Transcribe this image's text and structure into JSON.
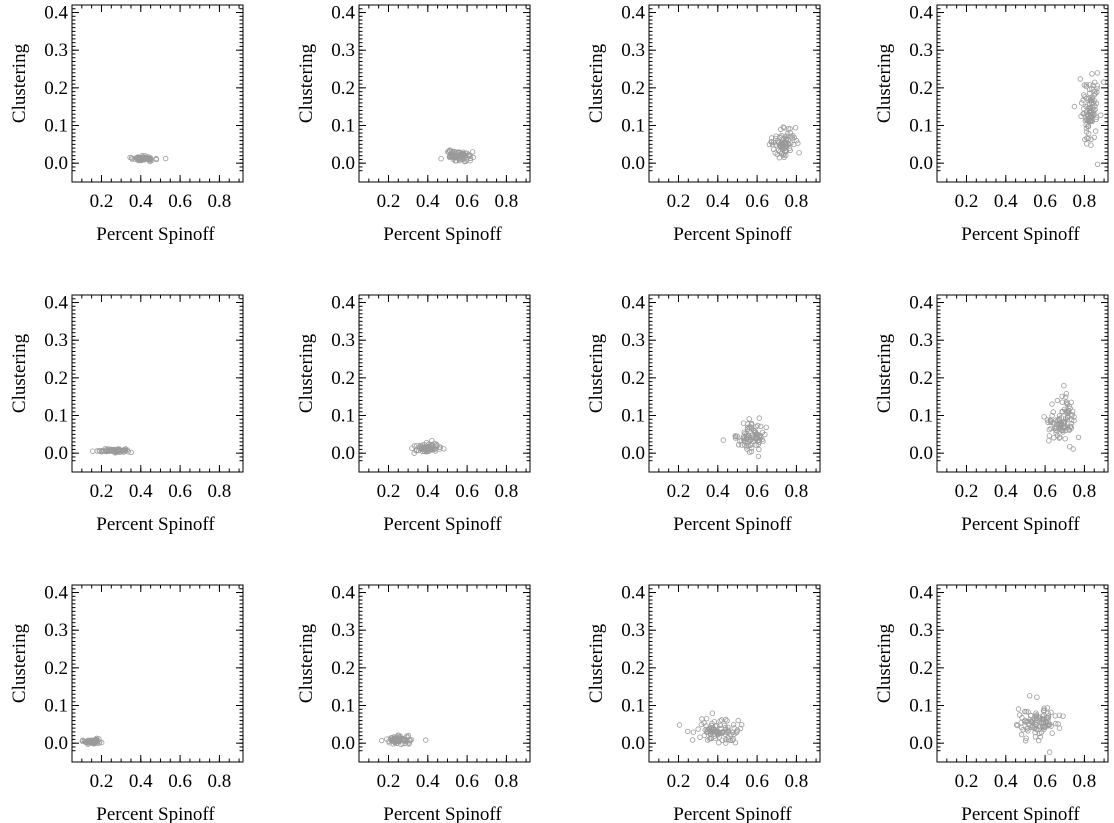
{
  "chart_data": [
    {
      "type": "scatter",
      "xlabel": "Percent Spinoff",
      "ylabel": "Clustering",
      "xticks": [
        "0.2",
        "0.4",
        "0.6",
        "0.8"
      ],
      "yticks": [
        "0.0",
        "0.1",
        "0.2",
        "0.3",
        "0.4"
      ],
      "xlim": [
        0.05,
        0.92
      ],
      "ylim": [
        -0.05,
        0.42
      ],
      "cluster": {
        "x_center": 0.42,
        "x_spread": 0.03,
        "y_center": 0.01,
        "y_spread": 0.004,
        "n": 60
      }
    },
    {
      "type": "scatter",
      "xlabel": "Percent Spinoff",
      "ylabel": "Clustering",
      "xticks": [
        "0.2",
        "0.4",
        "0.6",
        "0.8"
      ],
      "yticks": [
        "0.0",
        "0.1",
        "0.2",
        "0.3",
        "0.4"
      ],
      "xlim": [
        0.05,
        0.92
      ],
      "ylim": [
        -0.05,
        0.42
      ],
      "cluster": {
        "x_center": 0.56,
        "x_spread": 0.035,
        "y_center": 0.015,
        "y_spread": 0.01,
        "n": 80
      }
    },
    {
      "type": "scatter",
      "xlabel": "Percent Spinoff",
      "ylabel": "Clustering",
      "xticks": [
        "0.2",
        "0.4",
        "0.6",
        "0.8"
      ],
      "yticks": [
        "0.0",
        "0.1",
        "0.2",
        "0.3",
        "0.4"
      ],
      "xlim": [
        0.05,
        0.92
      ],
      "ylim": [
        -0.05,
        0.42
      ],
      "cluster": {
        "x_center": 0.73,
        "x_spread": 0.03,
        "y_center": 0.04,
        "y_spread": 0.025,
        "n": 90
      }
    },
    {
      "type": "scatter",
      "xlabel": "Percent Spinoff",
      "ylabel": "Clustering",
      "xticks": [
        "0.2",
        "0.4",
        "0.6",
        "0.8"
      ],
      "yticks": [
        "0.0",
        "0.1",
        "0.2",
        "0.3",
        "0.4"
      ],
      "xlim": [
        0.05,
        0.92
      ],
      "ylim": [
        -0.05,
        0.42
      ],
      "cluster": {
        "x_center": 0.83,
        "x_spread": 0.025,
        "y_center": 0.11,
        "y_spread": 0.06,
        "n": 100
      }
    },
    {
      "type": "scatter",
      "xlabel": "Percent Spinoff",
      "ylabel": "Clustering",
      "xticks": [
        "0.2",
        "0.4",
        "0.6",
        "0.8"
      ],
      "yticks": [
        "0.0",
        "0.1",
        "0.2",
        "0.3",
        "0.4"
      ],
      "xlim": [
        0.05,
        0.92
      ],
      "ylim": [
        -0.05,
        0.42
      ],
      "cluster": {
        "x_center": 0.26,
        "x_spread": 0.035,
        "y_center": 0.005,
        "y_spread": 0.004,
        "n": 60
      }
    },
    {
      "type": "scatter",
      "xlabel": "Percent Spinoff",
      "ylabel": "Clustering",
      "xticks": [
        "0.2",
        "0.4",
        "0.6",
        "0.8"
      ],
      "yticks": [
        "0.0",
        "0.1",
        "0.2",
        "0.3",
        "0.4"
      ],
      "xlim": [
        0.05,
        0.92
      ],
      "ylim": [
        -0.05,
        0.42
      ],
      "cluster": {
        "x_center": 0.4,
        "x_spread": 0.035,
        "y_center": 0.01,
        "y_spread": 0.008,
        "n": 70
      }
    },
    {
      "type": "scatter",
      "xlabel": "Percent Spinoff",
      "ylabel": "Clustering",
      "xticks": [
        "0.2",
        "0.4",
        "0.6",
        "0.8"
      ],
      "yticks": [
        "0.0",
        "0.1",
        "0.2",
        "0.3",
        "0.4"
      ],
      "xlim": [
        0.05,
        0.92
      ],
      "ylim": [
        -0.05,
        0.42
      ],
      "cluster": {
        "x_center": 0.57,
        "x_spread": 0.035,
        "y_center": 0.03,
        "y_spread": 0.022,
        "n": 90
      }
    },
    {
      "type": "scatter",
      "xlabel": "Percent Spinoff",
      "ylabel": "Clustering",
      "xticks": [
        "0.2",
        "0.4",
        "0.6",
        "0.8"
      ],
      "yticks": [
        "0.0",
        "0.1",
        "0.2",
        "0.3",
        "0.4"
      ],
      "xlim": [
        0.05,
        0.92
      ],
      "ylim": [
        -0.05,
        0.42
      ],
      "cluster": {
        "x_center": 0.69,
        "x_spread": 0.035,
        "y_center": 0.06,
        "y_spread": 0.04,
        "n": 100
      }
    },
    {
      "type": "scatter",
      "xlabel": "Percent Spinoff",
      "ylabel": "Clustering",
      "xticks": [
        "0.2",
        "0.4",
        "0.6",
        "0.8"
      ],
      "yticks": [
        "0.0",
        "0.1",
        "0.2",
        "0.3",
        "0.4"
      ],
      "xlim": [
        0.05,
        0.92
      ],
      "ylim": [
        -0.05,
        0.42
      ],
      "cluster": {
        "x_center": 0.15,
        "x_spread": 0.025,
        "y_center": 0.002,
        "y_spread": 0.004,
        "n": 60
      }
    },
    {
      "type": "scatter",
      "xlabel": "Percent Spinoff",
      "ylabel": "Clustering",
      "xticks": [
        "0.2",
        "0.4",
        "0.6",
        "0.8"
      ],
      "yticks": [
        "0.0",
        "0.1",
        "0.2",
        "0.3",
        "0.4"
      ],
      "xlim": [
        0.05,
        0.92
      ],
      "ylim": [
        -0.05,
        0.42
      ],
      "cluster": {
        "x_center": 0.25,
        "x_spread": 0.035,
        "y_center": 0.005,
        "y_spread": 0.007,
        "n": 80
      }
    },
    {
      "type": "scatter",
      "xlabel": "Percent Spinoff",
      "ylabel": "Clustering",
      "xticks": [
        "0.2",
        "0.4",
        "0.6",
        "0.8"
      ],
      "yticks": [
        "0.0",
        "0.1",
        "0.2",
        "0.3",
        "0.4"
      ],
      "xlim": [
        0.05,
        0.92
      ],
      "ylim": [
        -0.05,
        0.42
      ],
      "cluster": {
        "x_center": 0.41,
        "x_spread": 0.06,
        "y_center": 0.02,
        "y_spread": 0.022,
        "n": 100
      }
    },
    {
      "type": "scatter",
      "xlabel": "Percent Spinoff",
      "ylabel": "Clustering",
      "xticks": [
        "0.2",
        "0.4",
        "0.6",
        "0.8"
      ],
      "yticks": [
        "0.0",
        "0.1",
        "0.2",
        "0.3",
        "0.4"
      ],
      "xlim": [
        0.05,
        0.92
      ],
      "ylim": [
        -0.05,
        0.42
      ],
      "cluster": {
        "x_center": 0.56,
        "x_spread": 0.05,
        "y_center": 0.04,
        "y_spread": 0.03,
        "n": 100
      }
    }
  ]
}
